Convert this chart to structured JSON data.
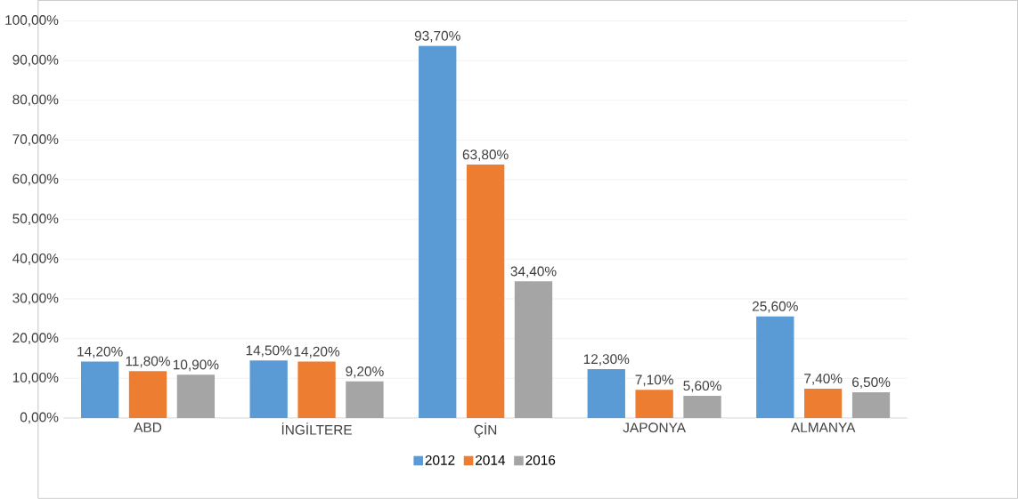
{
  "chart_data": {
    "type": "bar",
    "categories": [
      "ABD",
      "İNGİLTERE",
      "ÇİN",
      "JAPONYA",
      "ALMANYA"
    ],
    "series": [
      {
        "name": "2012",
        "color": "#5b9bd5",
        "values": [
          14.2,
          14.5,
          93.7,
          12.3,
          25.6
        ],
        "value_labels": [
          "14,20%",
          "14,50%",
          "93,70%",
          "12,30%",
          "25,60%"
        ]
      },
      {
        "name": "2014",
        "color": "#ed7d31",
        "values": [
          11.8,
          14.2,
          63.8,
          7.1,
          7.4
        ],
        "value_labels": [
          "11,80%",
          "14,20%",
          "63,80%",
          "7,10%",
          "7,40%"
        ]
      },
      {
        "name": "2016",
        "color": "#a5a5a5",
        "values": [
          10.9,
          9.2,
          34.4,
          5.6,
          6.5
        ],
        "value_labels": [
          "10,90%",
          "9,20%",
          "34,40%",
          "5,60%",
          "6,50%"
        ]
      }
    ],
    "ylim": [
      0,
      100
    ],
    "yticks": [
      {
        "value": 0,
        "label": "0,00%"
      },
      {
        "value": 10,
        "label": "10,00%"
      },
      {
        "value": 20,
        "label": "20,00%"
      },
      {
        "value": 30,
        "label": "30,00%"
      },
      {
        "value": 40,
        "label": "40,00%"
      },
      {
        "value": 50,
        "label": "50,00%"
      },
      {
        "value": 60,
        "label": "60,00%"
      },
      {
        "value": 70,
        "label": "70,00%"
      },
      {
        "value": 80,
        "label": "80,00%"
      },
      {
        "value": 90,
        "label": "90,00%"
      },
      {
        "value": 100,
        "label": "100,00%"
      }
    ],
    "grid": "y",
    "legend": "bottom"
  }
}
